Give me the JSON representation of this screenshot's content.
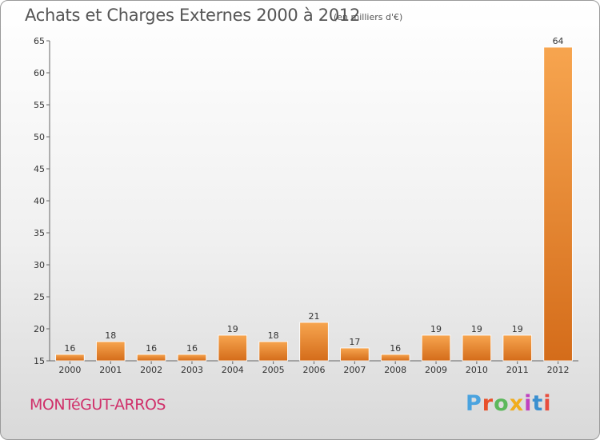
{
  "header": {
    "title": "Achats et Charges Externes 2000 à 2012",
    "subtitle": "(en milliers d'€)"
  },
  "footer": {
    "commune": "MONTéGUT-ARROS",
    "brand": "Proxiti",
    "brand_colors": [
      "#4aa3df",
      "#e8502a",
      "#5cb85c",
      "#f0ad1e",
      "#c040c0",
      "#3a8fd0",
      "#e84d3d"
    ]
  },
  "colors": {
    "bar_light": "#f7a54f",
    "bar_dark": "#d46c1a",
    "bar_edge": "#ffffff"
  },
  "chart_data": {
    "type": "bar",
    "title": "Achats et Charges Externes 2000 à 2012",
    "subtitle": "(en milliers d'€)",
    "xlabel": "",
    "ylabel": "",
    "categories": [
      "2000",
      "2001",
      "2002",
      "2003",
      "2004",
      "2005",
      "2006",
      "2007",
      "2008",
      "2009",
      "2010",
      "2011",
      "2012"
    ],
    "values": [
      16,
      18,
      16,
      16,
      19,
      18,
      21,
      17,
      16,
      19,
      19,
      19,
      64
    ],
    "data_labels": [
      "16",
      "18",
      "16",
      "16",
      "19",
      "18",
      "21",
      "17",
      "16",
      "19",
      "19",
      "19",
      "64"
    ],
    "ylim": [
      15,
      65
    ],
    "yticks": [
      "15",
      "20",
      "25",
      "30",
      "35",
      "40",
      "45",
      "50",
      "55",
      "60",
      "65"
    ],
    "grid": false,
    "legend": "none"
  }
}
